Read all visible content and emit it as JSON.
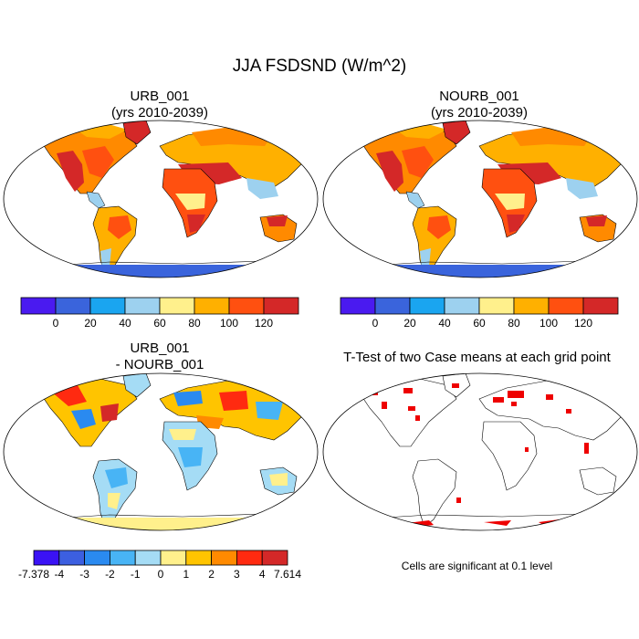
{
  "main_title": "JJA FSDSND (W/m^2)",
  "chart_data": [
    {
      "type": "heatmap",
      "title": "URB_001",
      "subtitle": "(yrs 2010-2039)",
      "colorbar": {
        "colors": [
          "#4a1af0",
          "#3a64dc",
          "#1aa5f0",
          "#9dd1ef",
          "#fff08c",
          "#ffb000",
          "#ff5010",
          "#d42828"
        ],
        "tick_labels": [
          "0",
          "20",
          "40",
          "60",
          "80",
          "100",
          "120"
        ]
      }
    },
    {
      "type": "heatmap",
      "title": "NOURB_001",
      "subtitle": "(yrs 2010-2039)",
      "colorbar": {
        "colors": [
          "#4a1af0",
          "#3a64dc",
          "#1aa5f0",
          "#9dd1ef",
          "#fff08c",
          "#ffb000",
          "#ff5010",
          "#d42828"
        ],
        "tick_labels": [
          "0",
          "20",
          "40",
          "60",
          "80",
          "100",
          "120"
        ]
      }
    },
    {
      "type": "heatmap",
      "title": "URB_001",
      "subtitle": "- NOURB_001",
      "colorbar": {
        "colors": [
          "#3a12f5",
          "#3c5fe0",
          "#2a8af0",
          "#48b4f5",
          "#a5dcf5",
          "#fff08c",
          "#ffc400",
          "#ff8a00",
          "#ff2a10",
          "#d42828"
        ],
        "tick_labels": [
          "-7.378",
          "-4",
          "-3",
          "-2",
          "-1",
          "0",
          "1",
          "2",
          "3",
          "4",
          "7.614"
        ]
      }
    },
    {
      "type": "heatmap",
      "title": "T-Test of two Case means at each grid point",
      "footnote": "Cells are significant at 0.1 level"
    }
  ]
}
